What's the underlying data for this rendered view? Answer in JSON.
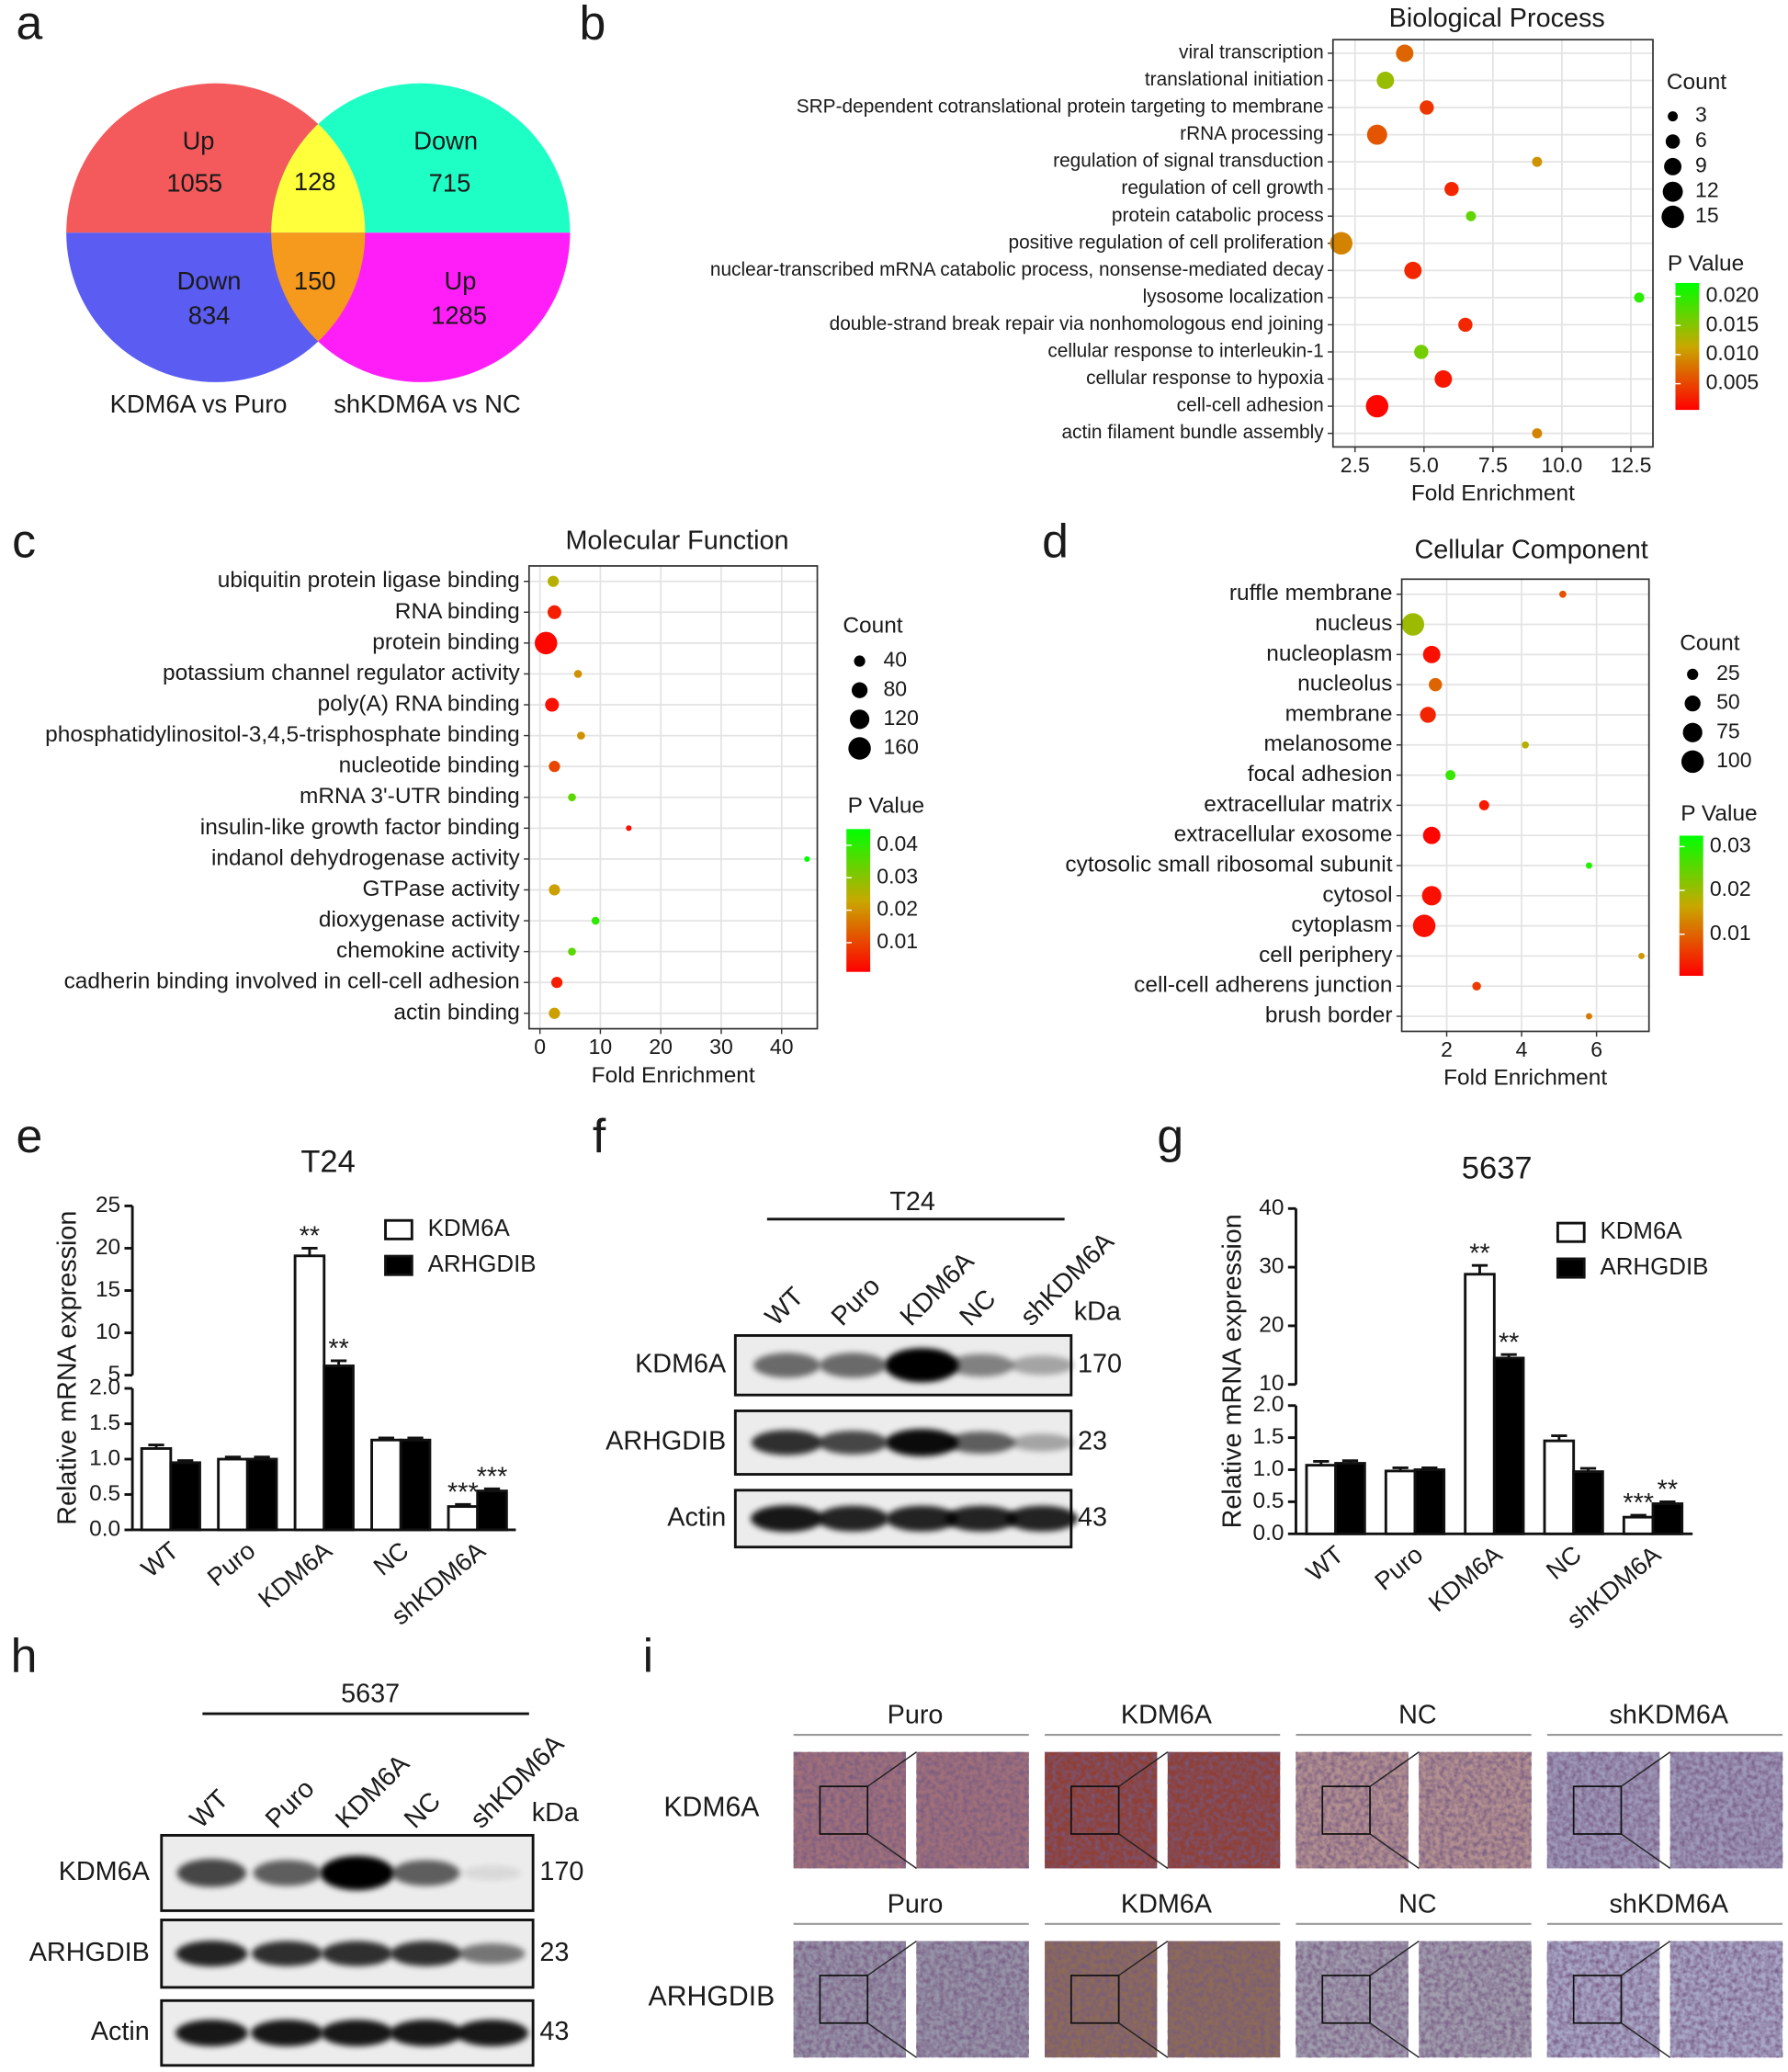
{
  "panel_labels": [
    "a",
    "b",
    "c",
    "d",
    "e",
    "f",
    "g",
    "h",
    "i"
  ],
  "venn": {
    "regions": [
      {
        "label": "Up",
        "count": 1055
      },
      {
        "label": "Down",
        "count": 715
      },
      {
        "label": "Down",
        "count": 834
      },
      {
        "label": "Up",
        "count": 1285
      }
    ],
    "overlaps": [
      128,
      150
    ],
    "set_labels": [
      "KDM6A vs Puro",
      "shKDM6A vs NC"
    ]
  },
  "chart_data": [
    {
      "type": "dot",
      "title": "Biological Process",
      "xlabel": "Fold Enrichment",
      "grid": true,
      "categories": [
        "viral transcription",
        "translational initiation",
        "SRP-dependent cotranslational protein targeting to membrane",
        "rRNA processing",
        "regulation of signal transduction",
        "regulation of cell growth",
        "protein catabolic process",
        "positive regulation of cell proliferation",
        "nuclear-transcribed mRNA catabolic process, nonsense-mediated decay",
        "lysosome localization",
        "double-strand break repair via nonhomologous end joining",
        "cellular response to interleukin-1",
        "cellular response to hypoxia",
        "cell-cell adhesion",
        "actin filament bundle assembly"
      ],
      "values": [
        4.3,
        3.6,
        5.1,
        3.3,
        9.1,
        6.0,
        6.7,
        2.0,
        4.6,
        12.8,
        6.5,
        4.9,
        5.7,
        3.3,
        9.1
      ],
      "size": [
        9,
        9,
        6,
        12,
        3,
        6,
        3,
        15,
        9,
        3,
        6,
        6,
        9,
        15,
        3
      ],
      "pvalue": [
        0.007,
        0.014,
        0.004,
        0.006,
        0.01,
        0.003,
        0.017,
        0.009,
        0.003,
        0.02,
        0.003,
        0.016,
        0.002,
        0.001,
        0.009
      ],
      "xlim": [
        1.7,
        13.3
      ],
      "xticks": [
        2.5,
        {
          "value": 5,
          "label": "5.0"
        },
        7.5,
        {
          "value": 10,
          "label": "10.0"
        },
        12.5
      ],
      "size_legend": {
        "title": "Count",
        "values": [
          3,
          6,
          9,
          12,
          15
        ]
      },
      "color_legend": {
        "title": "P Value",
        "colors": [
          "#ff0000",
          "#c8a800",
          "#00ff00"
        ],
        "limits": [
          0.0005,
          0.0223
        ],
        "ticks": [
          0.005,
          {
            "value": 0.01,
            "label": "0.010"
          },
          0.015,
          {
            "value": 0.02,
            "label": "0.020"
          }
        ]
      }
    },
    {
      "type": "dot",
      "title": "Molecular Function",
      "xlabel": "Fold Enrichment",
      "grid": true,
      "categories": [
        "ubiquitin protein ligase binding",
        "RNA binding",
        "protein binding",
        "potassium channel regulator activity",
        "poly(A) RNA binding",
        "phosphatidylinositol-3,4,5-trisphosphate binding",
        "nucleotide binding",
        "mRNA 3'-UTR binding",
        "insulin-like growth factor binding",
        "indanol dehydrogenase activity",
        "GTPase activity",
        "dioxygenase activity",
        "chemokine activity",
        "cadherin binding involved in cell-cell adhesion",
        "actin binding"
      ],
      "values": [
        2.2,
        2.4,
        1.0,
        6.3,
        2.0,
        6.8,
        2.4,
        5.3,
        14.7,
        44.2,
        2.4,
        9.2,
        5.3,
        2.8,
        2.4
      ],
      "size": [
        40,
        60,
        160,
        20,
        60,
        20,
        40,
        20,
        10,
        10,
        40,
        20,
        20,
        40,
        40
      ],
      "pvalue": [
        0.025,
        0.005,
        0.002,
        0.02,
        0.003,
        0.02,
        0.01,
        0.035,
        0.003,
        0.045,
        0.022,
        0.04,
        0.035,
        0.005,
        0.022
      ],
      "xlim": [
        -1.8,
        45.9
      ],
      "xticks": [
        0,
        10,
        20,
        30,
        40
      ],
      "size_legend": {
        "title": "Count",
        "values": [
          40,
          80,
          120,
          160
        ]
      },
      "color_legend": {
        "title": "P Value",
        "colors": [
          "#ff0000",
          "#c8a800",
          "#00ff00"
        ],
        "limits": [
          0.001,
          0.045
        ],
        "ticks": [
          0.01,
          0.02,
          0.03,
          0.04
        ]
      }
    },
    {
      "type": "dot",
      "title": "Cellular Component",
      "xlabel": "Fold Enrichment",
      "grid": true,
      "categories": [
        "ruffle membrane",
        "nucleus",
        "nucleoplasm",
        "nucleolus",
        "membrane",
        "melanosome",
        "focal adhesion",
        "extracellular matrix",
        "extracellular exosome",
        "cytosolic small ribosomal subunit",
        "cytosol",
        "cytoplasm",
        "cell periphery",
        "cell-cell adherens junction",
        "brush border"
      ],
      "values": [
        5.1,
        1.1,
        1.6,
        1.7,
        1.5,
        4.1,
        2.1,
        3.0,
        1.6,
        5.8,
        1.6,
        1.4,
        7.2,
        2.8,
        5.8
      ],
      "size": [
        10,
        100,
        60,
        35,
        50,
        10,
        20,
        20,
        60,
        8,
        75,
        100,
        8,
        15,
        8
      ],
      "pvalue": [
        0.008,
        0.02,
        0.002,
        0.01,
        0.004,
        0.018,
        0.028,
        0.003,
        0.001,
        0.03,
        0.002,
        0.002,
        0.015,
        0.006,
        0.012
      ],
      "xlim": [
        0.8,
        7.4
      ],
      "xticks": [
        2,
        4,
        6
      ],
      "size_legend": {
        "title": "Count",
        "values": [
          25,
          50,
          75,
          100
        ]
      },
      "color_legend": {
        "title": "P Value",
        "colors": [
          "#ff0000",
          "#c8a800",
          "#00ff00"
        ],
        "limits": [
          0.0005,
          0.0325
        ],
        "ticks": [
          0.01,
          0.02,
          0.03
        ]
      }
    },
    {
      "type": "bar",
      "title": "T24",
      "ylabel": "Relative mRNA expression",
      "legend": "upper right",
      "categories": [
        "WT",
        "Puro",
        "KDM6A",
        "NC",
        "shKDM6A"
      ],
      "series": [
        {
          "name": "KDM6A",
          "color": "#ffffff",
          "values": [
            1.15,
            1.0,
            19.1,
            1.27,
            0.33
          ],
          "errors": [
            0.05,
            0.03,
            0.9,
            0.03,
            0.03
          ],
          "labels": [
            null,
            null,
            "**",
            null,
            "***"
          ]
        },
        {
          "name": "ARHGDIB",
          "color": "#000000",
          "values": [
            0.95,
            1.0,
            6.1,
            1.27,
            0.55
          ],
          "errors": [
            0.03,
            0.03,
            0.6,
            0.03,
            0.03
          ],
          "labels": [
            null,
            null,
            "**",
            null,
            "***"
          ]
        }
      ],
      "ylim": [
        0,
        25
      ],
      "ybreak": [
        2,
        5
      ],
      "yticks": [
        {
          "value": 0,
          "label": "0.0"
        },
        0.5,
        {
          "value": 1,
          "label": "1.0"
        },
        1.5,
        {
          "value": 2,
          "label": "2.0"
        },
        5,
        10,
        15,
        20,
        25
      ]
    },
    {
      "type": "bar",
      "title": "5637",
      "ylabel": "Relative mRNA expression",
      "legend": "upper right",
      "categories": [
        "WT",
        "Puro",
        "KDM6A",
        "NC",
        "shKDM6A"
      ],
      "series": [
        {
          "name": "KDM6A",
          "color": "#ffffff",
          "values": [
            1.07,
            0.98,
            28.8,
            1.45,
            0.26
          ],
          "errors": [
            0.06,
            0.05,
            1.5,
            0.08,
            0.03
          ],
          "labels": [
            null,
            null,
            "**",
            null,
            "***"
          ]
        },
        {
          "name": "ARHGDIB",
          "color": "#000000",
          "values": [
            1.1,
            1.0,
            14.5,
            0.97,
            0.47
          ],
          "errors": [
            0.04,
            0.03,
            0.6,
            0.05,
            0.03
          ],
          "labels": [
            null,
            null,
            "**",
            null,
            "**"
          ]
        }
      ],
      "ylim": [
        0,
        40
      ],
      "ybreak": [
        2,
        10
      ],
      "yticks": [
        {
          "value": 0,
          "label": "0.0"
        },
        0.5,
        {
          "value": 1,
          "label": "1.0"
        },
        1.5,
        {
          "value": 2,
          "label": "2.0"
        },
        10,
        20,
        30,
        40
      ]
    }
  ],
  "blots": [
    {
      "header": "T24",
      "lanes": [
        "WT",
        "Puro",
        "KDM6A",
        "NC",
        "shKDM6A"
      ],
      "unit": "kDa",
      "rows": [
        {
          "protein": "KDM6A",
          "kda": 170
        },
        {
          "protein": "ARHGDIB",
          "kda": 23
        },
        {
          "protein": "Actin",
          "kda": 43
        }
      ]
    },
    {
      "header": "5637",
      "lanes": [
        "WT",
        "Puro",
        "KDM6A",
        "NC",
        "shKDM6A"
      ],
      "unit": "kDa",
      "rows": [
        {
          "protein": "KDM6A",
          "kda": 170
        },
        {
          "protein": "ARHGDIB",
          "kda": 23
        },
        {
          "protein": "Actin",
          "kda": 43
        }
      ]
    }
  ],
  "ihc": {
    "columns": [
      "Puro",
      "KDM6A",
      "NC",
      "shKDM6A"
    ],
    "rows": [
      "KDM6A",
      "ARHGDIB"
    ]
  }
}
